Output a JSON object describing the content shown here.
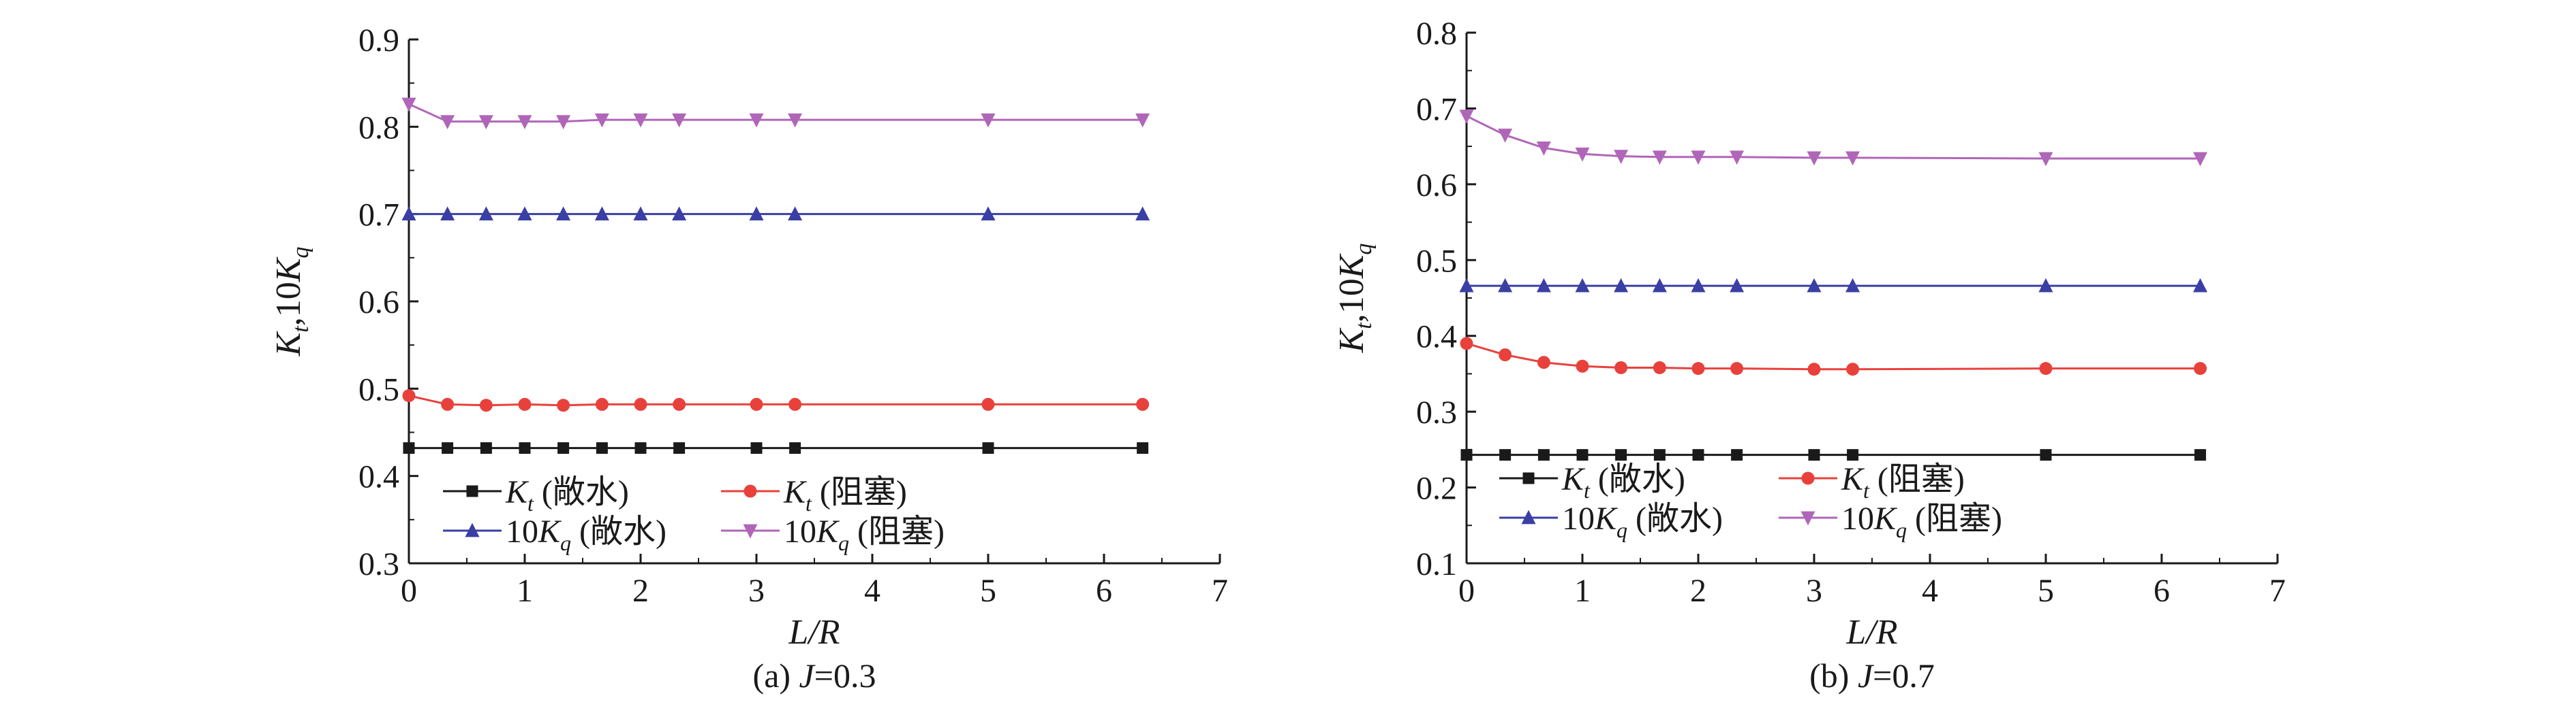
{
  "chart_data": [
    {
      "type": "line",
      "caption_prefix": "(a) ",
      "caption_var": "J",
      "caption_rest": "=0.3",
      "xlabel": "L/R",
      "ylabel": "K_t,10K_q",
      "xlim": [
        0,
        7
      ],
      "ylim": [
        0.3,
        0.9
      ],
      "xticks": [
        "0",
        "1",
        "2",
        "3",
        "4",
        "5",
        "6",
        "7"
      ],
      "yticks": [
        "0.3",
        "0.4",
        "0.5",
        "0.6",
        "0.7",
        "0.8",
        "0.9"
      ],
      "x": [
        0,
        0.333,
        0.667,
        1,
        1.333,
        1.667,
        2,
        2.333,
        3,
        3.333,
        5,
        6.333
      ],
      "series": [
        {
          "name_main": "K",
          "name_sub": "t",
          "name_suffix": " (敞水)",
          "marker": "square",
          "color": "#1a1a1a",
          "values": [
            0.432,
            0.432,
            0.432,
            0.432,
            0.432,
            0.432,
            0.432,
            0.432,
            0.432,
            0.432,
            0.432,
            0.432
          ]
        },
        {
          "name_main": "K",
          "name_sub": "t",
          "name_suffix": " (阻塞)",
          "marker": "circle",
          "color": "#e8413c",
          "values": [
            0.492,
            0.482,
            0.481,
            0.482,
            0.481,
            0.482,
            0.482,
            0.482,
            0.482,
            0.482,
            0.482,
            0.482
          ]
        },
        {
          "name_main": "10K",
          "name_sub": "q",
          "name_suffix": " (敞水)",
          "marker": "triangle-up",
          "color": "#3a3fa5",
          "values": [
            0.7,
            0.7,
            0.7,
            0.7,
            0.7,
            0.7,
            0.7,
            0.7,
            0.7,
            0.7,
            0.7,
            0.7
          ]
        },
        {
          "name_main": "10K",
          "name_sub": "q",
          "name_suffix": " (阻塞)",
          "marker": "triangle-down",
          "color": "#b066b8",
          "values": [
            0.826,
            0.806,
            0.806,
            0.806,
            0.806,
            0.808,
            0.808,
            0.808,
            0.808,
            0.808,
            0.808,
            0.808
          ]
        }
      ]
    },
    {
      "type": "line",
      "caption_prefix": "(b) ",
      "caption_var": "J",
      "caption_rest": "=0.7",
      "xlabel": "L/R",
      "ylabel": "K_t,10K_q",
      "xlim": [
        0,
        7
      ],
      "ylim": [
        0.1,
        0.8
      ],
      "xticks": [
        "0",
        "1",
        "2",
        "3",
        "4",
        "5",
        "6",
        "7"
      ],
      "yticks": [
        "0.1",
        "0.2",
        "0.3",
        "0.4",
        "0.5",
        "0.6",
        "0.7",
        "0.8"
      ],
      "x": [
        0,
        0.333,
        0.667,
        1,
        1.333,
        1.667,
        2,
        2.333,
        3,
        3.333,
        5,
        6.333
      ],
      "series": [
        {
          "name_main": "K",
          "name_sub": "t",
          "name_suffix": " (敞水)",
          "marker": "square",
          "color": "#1a1a1a",
          "values": [
            0.243,
            0.243,
            0.243,
            0.243,
            0.243,
            0.243,
            0.243,
            0.243,
            0.243,
            0.243,
            0.243,
            0.243
          ]
        },
        {
          "name_main": "K",
          "name_sub": "t",
          "name_suffix": " (阻塞)",
          "marker": "circle",
          "color": "#e8413c",
          "values": [
            0.39,
            0.375,
            0.365,
            0.36,
            0.358,
            0.358,
            0.357,
            0.357,
            0.356,
            0.356,
            0.357,
            0.357
          ]
        },
        {
          "name_main": "10K",
          "name_sub": "q",
          "name_suffix": " (敞水)",
          "marker": "triangle-up",
          "color": "#3a3fa5",
          "values": [
            0.466,
            0.466,
            0.466,
            0.466,
            0.466,
            0.466,
            0.466,
            0.466,
            0.466,
            0.466,
            0.466,
            0.466
          ]
        },
        {
          "name_main": "10K",
          "name_sub": "q",
          "name_suffix": " (阻塞)",
          "marker": "triangle-down",
          "color": "#b066b8",
          "values": [
            0.69,
            0.665,
            0.648,
            0.64,
            0.637,
            0.636,
            0.636,
            0.636,
            0.635,
            0.635,
            0.634,
            0.634
          ]
        }
      ]
    }
  ]
}
